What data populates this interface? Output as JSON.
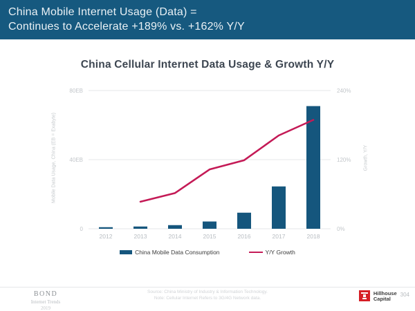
{
  "header": {
    "line1": "China Mobile Internet Usage (Data) =",
    "line2": "Continues to Accelerate +189% vs. +162% Y/Y"
  },
  "chart_data": {
    "type": "bar",
    "title": "China Cellular Internet Data Usage & Growth Y/Y",
    "categories": [
      "2012",
      "2013",
      "2014",
      "2015",
      "2016",
      "2017",
      "2018"
    ],
    "series": [
      {
        "name": "China Mobile Data Consumption",
        "type": "bar",
        "axis": "left",
        "values": [
          0.9,
          1.3,
          2.1,
          4.2,
          9.3,
          24.5,
          71
        ],
        "color": "#15567d"
      },
      {
        "name": "Y/Y Growth",
        "type": "line",
        "axis": "right",
        "values": [
          null,
          47,
          62,
          103,
          119,
          162,
          189
        ],
        "color": "#c41a56"
      }
    ],
    "left_axis": {
      "label": "Mobile Data Usage, China (EB = Exabyte)",
      "ticks": [
        "80EB",
        "40EB",
        "0"
      ],
      "range": [
        0,
        80
      ]
    },
    "right_axis": {
      "label": "Growth, Y/Y",
      "ticks": [
        "240%",
        "120%",
        "0%"
      ],
      "range": [
        0,
        240
      ]
    },
    "grid": true,
    "legend_position": "bottom"
  },
  "footer": {
    "brand": {
      "name": "BOND",
      "sub": "Internet Trends",
      "year": "2019"
    },
    "source_line1": "Source: China Ministry of Industry & Information Technology.",
    "source_line2": "Note: Cellular Internet Refers to 3G/4G Network data.",
    "partner": {
      "name_line1": "Hillhouse",
      "name_line2": "Capital"
    },
    "page_number": "304"
  },
  "colors": {
    "header_bg": "#16597f",
    "bar": "#15567d",
    "line": "#c41a56",
    "gridline": "#e5e7e9",
    "title_text": "#3d4651"
  }
}
